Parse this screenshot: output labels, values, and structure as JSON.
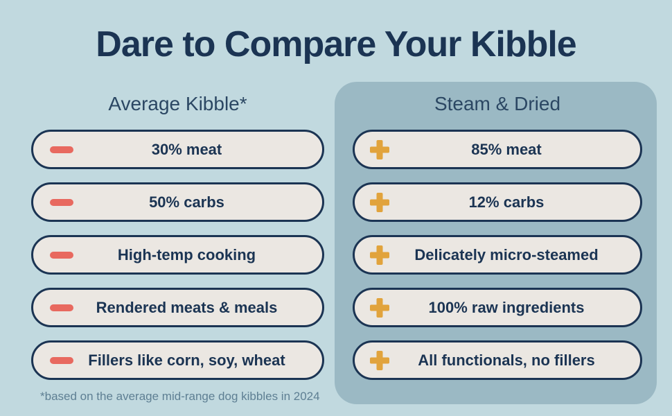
{
  "title": "Dare to Compare Your Kibble",
  "footnote": "*based on the average mid-range dog kibbles in 2024",
  "columns": {
    "left": {
      "header": "Average Kibble*",
      "icon": "minus-icon",
      "items": [
        "30% meat",
        "50% carbs",
        "High-temp cooking",
        "Rendered meats & meals",
        "Fillers like corn, soy, wheat"
      ]
    },
    "right": {
      "header": "Steam & Dried",
      "icon": "plus-icon",
      "items": [
        "85% meat",
        "12% carbs",
        "Delicately micro-steamed",
        "100% raw ingredients",
        "All functionals, no fillers"
      ]
    }
  },
  "colors": {
    "background": "#c1d9df",
    "panel": "#9bb9c4",
    "navy": "#1b3453",
    "header": "#2b4763",
    "pill_bg": "#ebe7e2",
    "minus": "#e8695f",
    "plus": "#e1a33c",
    "footnote": "#5e7f93"
  }
}
